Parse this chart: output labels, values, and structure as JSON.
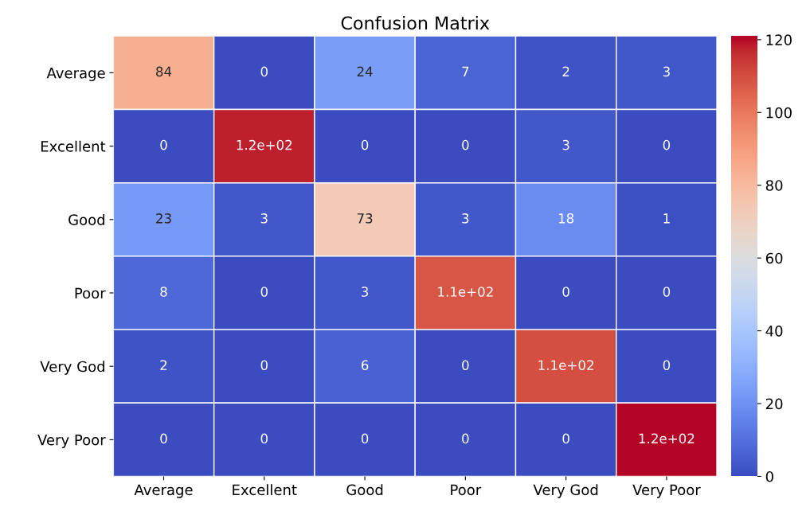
{
  "chart_data": {
    "type": "heatmap",
    "title": "Confusion Matrix",
    "categories": [
      "Average",
      "Excellent",
      "Good",
      "Poor",
      "Very God",
      "Very Poor"
    ],
    "y_categories": [
      "Average",
      "Excellent",
      "Good",
      "Poor",
      "Very God",
      "Very Poor"
    ],
    "cells": [
      [
        84,
        0,
        24,
        7,
        2,
        3
      ],
      [
        0,
        118,
        0,
        0,
        3,
        0
      ],
      [
        23,
        3,
        73,
        3,
        18,
        1
      ],
      [
        8,
        0,
        3,
        108,
        0,
        0
      ],
      [
        2,
        0,
        6,
        0,
        110,
        0
      ],
      [
        0,
        0,
        0,
        0,
        0,
        121
      ]
    ],
    "cell_labels": [
      [
        "84",
        "0",
        "24",
        "7",
        "2",
        "3"
      ],
      [
        "0",
        "1.2e+02",
        "0",
        "0",
        "3",
        "0"
      ],
      [
        "23",
        "3",
        "73",
        "3",
        "18",
        "1"
      ],
      [
        "8",
        "0",
        "3",
        "1.1e+02",
        "0",
        "0"
      ],
      [
        "2",
        "0",
        "6",
        "0",
        "1.1e+02",
        "0"
      ],
      [
        "0",
        "0",
        "0",
        "0",
        "0",
        "1.2e+02"
      ]
    ],
    "clim": [
      0,
      121
    ],
    "cticks": [
      0,
      20,
      40,
      60,
      80,
      100,
      120
    ]
  }
}
